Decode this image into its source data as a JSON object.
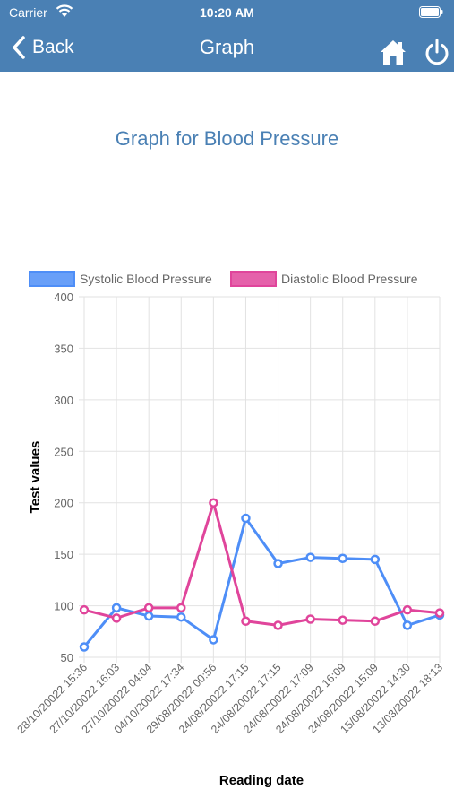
{
  "status_bar": {
    "carrier": "Carrier",
    "time": "10:20 AM"
  },
  "nav": {
    "back_label": "Back",
    "title": "Graph"
  },
  "page": {
    "heading": "Graph for Blood Pressure"
  },
  "colors": {
    "header": "#4a80b4",
    "systolic": "#4e8ef7",
    "diastolic": "#e0459b"
  },
  "icons": {
    "back": "chevron-left-icon",
    "home": "home-icon",
    "power": "power-icon",
    "wifi": "wifi-icon",
    "battery": "battery-icon"
  },
  "chart_data": {
    "type": "line",
    "categories": [
      "28/10/20022 15:36",
      "27/10/20022 16:03",
      "27/10/20022 04:04",
      "04/10/20022 17:34",
      "29/08/20022 00:56",
      "24/08/20022 17:15",
      "24/08/20022 17:15",
      "24/08/20022 17:09",
      "24/08/20022 16:09",
      "24/08/20022 15:09",
      "15/08/20022 14:30",
      "13/03/20022 18:13"
    ],
    "series": [
      {
        "name": "Systolic Blood Pressure",
        "color": "#4e8ef7",
        "values": [
          60,
          98,
          90,
          89,
          67,
          185,
          141,
          147,
          146,
          145,
          81,
          91
        ]
      },
      {
        "name": "Diastolic Blood Pressure",
        "color": "#e0459b",
        "values": [
          96,
          88,
          98,
          98,
          200,
          85,
          81,
          87,
          86,
          85,
          96,
          93
        ]
      }
    ],
    "xlabel": "Reading date",
    "ylabel": "Test values",
    "ylim": [
      50,
      400
    ],
    "yticks": [
      50,
      100,
      150,
      200,
      250,
      300,
      350,
      400
    ],
    "grid": true,
    "legend": "top"
  }
}
